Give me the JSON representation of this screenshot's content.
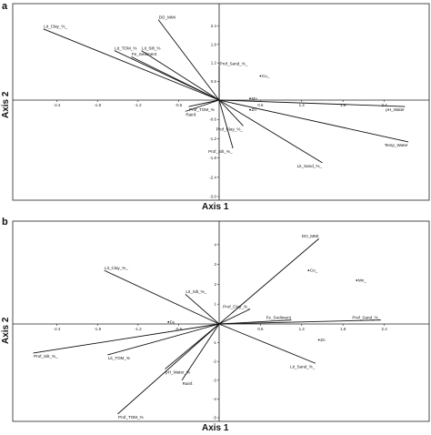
{
  "panels": [
    {
      "letter": "a",
      "xlabel": "Axis 1",
      "ylabel": "Axis 2"
    },
    {
      "letter": "b",
      "xlabel": "Axis 1",
      "ylabel": "Axis 2"
    }
  ],
  "chart_data": [
    {
      "type": "scatter",
      "title": "",
      "panel": "a",
      "xlabel": "Axis 1",
      "ylabel": "Axis 2",
      "xlim": [
        -3.0,
        3.0
      ],
      "ylim": [
        -3.0,
        3.0
      ],
      "xticks": [
        "-2.4",
        "-1.8",
        "-1.2",
        "-0.6",
        "0.6",
        "1.2",
        "1.8",
        "2.4"
      ],
      "yticks": [
        "2.4",
        "1.8",
        "1.2",
        "0.6",
        "-0.6",
        "-1.2",
        "-1.8",
        "-2.4",
        "-3.0"
      ],
      "vectors": [
        {
          "label": "Lit_Clay_%_",
          "x": -2.6,
          "y": 2.3
        },
        {
          "label": "DO_MMI",
          "x": -0.9,
          "y": 2.6
        },
        {
          "label": "Lit_TOM_%",
          "x": -1.55,
          "y": 1.6
        },
        {
          "label": "Lit_Silt_%",
          "x": -1.15,
          "y": 1.6
        },
        {
          "label": "Fe_Sediment",
          "x": -1.3,
          "y": 1.4
        },
        {
          "label": "Prof_Sand_%_",
          "x": 0.0,
          "y": 1.1
        },
        {
          "label": "Prof_TOM_%",
          "x": -0.45,
          "y": -0.2
        },
        {
          "label": "Rainf.",
          "x": -0.5,
          "y": -0.35
        },
        {
          "label": "Prof_Clay_%_",
          "x": 0.35,
          "y": -0.8
        },
        {
          "label": "Prof_Silt_%_",
          "x": 0.2,
          "y": -1.5
        },
        {
          "label": "Lit_Sand_%_",
          "x": 1.5,
          "y": -1.95
        },
        {
          "label": "Temp_Water",
          "x": 2.75,
          "y": -1.3
        },
        {
          "label": "pH_Water",
          "x": 2.7,
          "y": -0.2
        }
      ],
      "points": [
        {
          "label": "Cu_",
          "x": 0.6,
          "y": 0.78
        },
        {
          "label": "Zn",
          "x": 0.45,
          "y": -0.3
        },
        {
          "label": "Mn",
          "x": 0.45,
          "y": 0.05
        }
      ]
    },
    {
      "type": "scatter",
      "title": "",
      "panel": "b",
      "xlabel": "Axis 1",
      "ylabel": "Axis 2",
      "xlim": [
        -3.0,
        3.0
      ],
      "ylim": [
        -5.0,
        5.0
      ],
      "xticks": [
        "-2.4",
        "-1.8",
        "-1.2",
        "-0.6",
        "0.6",
        "1.2",
        "1.8",
        "2.4"
      ],
      "yticks": [
        "4",
        "3",
        "2",
        "1",
        "-1",
        "-2",
        "-3",
        "-4",
        "-5"
      ],
      "vectors": [
        {
          "label": "DO_MMI",
          "x": 1.45,
          "y": 4.3
        },
        {
          "label": "Lit_Clay_%_",
          "x": -1.7,
          "y": 2.7
        },
        {
          "label": "Lit_Silt_%_",
          "x": -0.5,
          "y": 1.5
        },
        {
          "label": "Prof_Clay_%_",
          "x": 0.45,
          "y": 0.75
        },
        {
          "label": "Fe_Sediment",
          "x": 1.05,
          "y": 0.2
        },
        {
          "label": "Prof_Sand_%_",
          "x": 2.35,
          "y": 0.2
        },
        {
          "label": "Prof_Silt_%_",
          "x": -2.75,
          "y": -1.55
        },
        {
          "label": "Lit_TOM_%",
          "x": -1.65,
          "y": -1.65
        },
        {
          "label": "pH_Water_%",
          "x": -0.8,
          "y": -2.4
        },
        {
          "label": "Rainf.",
          "x": -0.55,
          "y": -3.0
        },
        {
          "label": "Prof_TOM_%",
          "x": -1.5,
          "y": -4.8
        },
        {
          "label": "Lit_Sand_%_",
          "x": 1.4,
          "y": -2.1
        }
      ],
      "points": [
        {
          "label": "Cu_",
          "x": 1.3,
          "y": 2.7
        },
        {
          "label": "Mn_",
          "x": 2.0,
          "y": 2.2
        },
        {
          "label": "Fe",
          "x": -0.75,
          "y": 0.1
        },
        {
          "label": "Zn",
          "x": 1.45,
          "y": -0.85
        }
      ]
    }
  ]
}
